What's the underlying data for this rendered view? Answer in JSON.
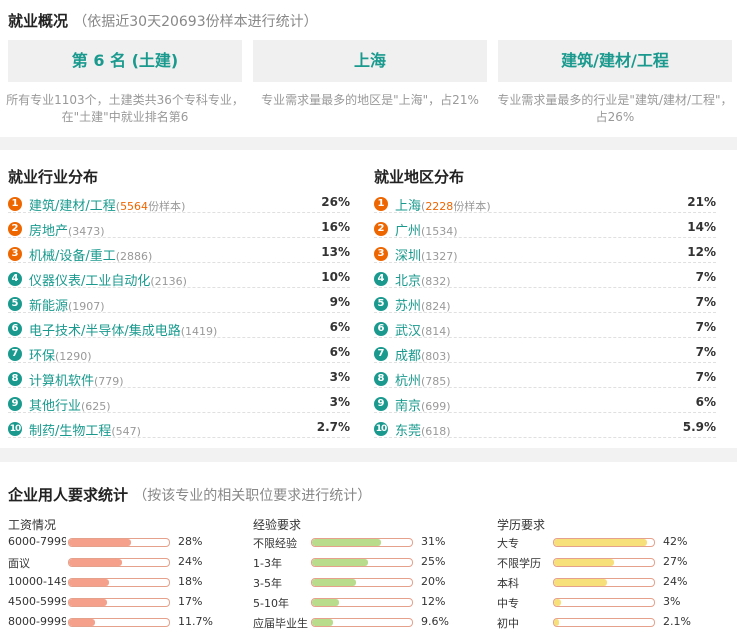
{
  "overview": {
    "title": "就业概况",
    "subtitle": "（依据近30天20693份样本进行统计）",
    "boxes": [
      {
        "value": "第 6 名 (土建)",
        "desc": "所有专业1103个，土建类共36个专科专业，在\"土建\"中就业排名第6"
      },
      {
        "value": "上海",
        "desc": "专业需求量最多的地区是\"上海\"，占21%"
      },
      {
        "value": "建筑/建材/工程",
        "desc": "专业需求量最多的行业是\"建筑/建材/工程\"，占26%"
      }
    ]
  },
  "industry": {
    "title": "就业行业分布",
    "sample_suffix": "份样本",
    "items": [
      {
        "rank": "1",
        "name": "建筑/建材/工程",
        "count": "5564",
        "pct": "26%"
      },
      {
        "rank": "2",
        "name": "房地产",
        "count": "(3473)",
        "pct": "16%"
      },
      {
        "rank": "3",
        "name": "机械/设备/重工",
        "count": "(2886)",
        "pct": "13%"
      },
      {
        "rank": "4",
        "name": "仪器仪表/工业自动化",
        "count": "(2136)",
        "pct": "10%"
      },
      {
        "rank": "5",
        "name": "新能源",
        "count": "(1907)",
        "pct": "9%"
      },
      {
        "rank": "6",
        "name": "电子技术/半导体/集成电路",
        "count": "(1419)",
        "pct": "6%"
      },
      {
        "rank": "7",
        "name": "环保",
        "count": "(1290)",
        "pct": "6%"
      },
      {
        "rank": "8",
        "name": "计算机软件",
        "count": "(779)",
        "pct": "3%"
      },
      {
        "rank": "9",
        "name": "其他行业",
        "count": "(625)",
        "pct": "3%"
      },
      {
        "rank": "10",
        "name": "制药/生物工程",
        "count": "(547)",
        "pct": "2.7%"
      }
    ]
  },
  "region": {
    "title": "就业地区分布",
    "sample_suffix": "份样本",
    "items": [
      {
        "rank": "1",
        "name": "上海",
        "count": "2228",
        "pct": "21%"
      },
      {
        "rank": "2",
        "name": "广州",
        "count": "(1534)",
        "pct": "14%"
      },
      {
        "rank": "3",
        "name": "深圳",
        "count": "(1327)",
        "pct": "12%"
      },
      {
        "rank": "4",
        "name": "北京",
        "count": "(832)",
        "pct": "7%"
      },
      {
        "rank": "5",
        "name": "苏州",
        "count": "(824)",
        "pct": "7%"
      },
      {
        "rank": "6",
        "name": "武汉",
        "count": "(814)",
        "pct": "7%"
      },
      {
        "rank": "7",
        "name": "成都",
        "count": "(803)",
        "pct": "7%"
      },
      {
        "rank": "8",
        "name": "杭州",
        "count": "(785)",
        "pct": "7%"
      },
      {
        "rank": "9",
        "name": "南京",
        "count": "(699)",
        "pct": "6%"
      },
      {
        "rank": "10",
        "name": "东莞",
        "count": "(618)",
        "pct": "5.9%"
      }
    ]
  },
  "requirements": {
    "title": "企业用人要求统计",
    "subtitle": "（按该专业的相关职位要求进行统计）",
    "columns": [
      {
        "title": "工资情况",
        "color": "#f4a08a",
        "items": [
          {
            "label": "6000-7999",
            "pct": "28%",
            "value": 28
          },
          {
            "label": "面议",
            "pct": "24%",
            "value": 24
          },
          {
            "label": "10000-149",
            "pct": "18%",
            "value": 18
          },
          {
            "label": "4500-5999",
            "pct": "17%",
            "value": 17
          },
          {
            "label": "8000-9999",
            "pct": "11.7%",
            "value": 11.7
          }
        ]
      },
      {
        "title": "经验要求",
        "color": "#b8dc8c",
        "items": [
          {
            "label": "不限经验",
            "pct": "31%",
            "value": 31
          },
          {
            "label": "1-3年",
            "pct": "25%",
            "value": 25
          },
          {
            "label": "3-5年",
            "pct": "20%",
            "value": 20
          },
          {
            "label": "5-10年",
            "pct": "12%",
            "value": 12
          },
          {
            "label": "应届毕业生",
            "pct": "9.6%",
            "value": 9.6
          }
        ]
      },
      {
        "title": "学历要求",
        "color": "#f7e07a",
        "items": [
          {
            "label": "大专",
            "pct": "42%",
            "value": 42
          },
          {
            "label": "不限学历",
            "pct": "27%",
            "value": 27
          },
          {
            "label": "本科",
            "pct": "24%",
            "value": 24
          },
          {
            "label": "中专",
            "pct": "3%",
            "value": 3
          },
          {
            "label": "初中",
            "pct": "2.1%",
            "value": 2.1
          }
        ]
      }
    ]
  }
}
